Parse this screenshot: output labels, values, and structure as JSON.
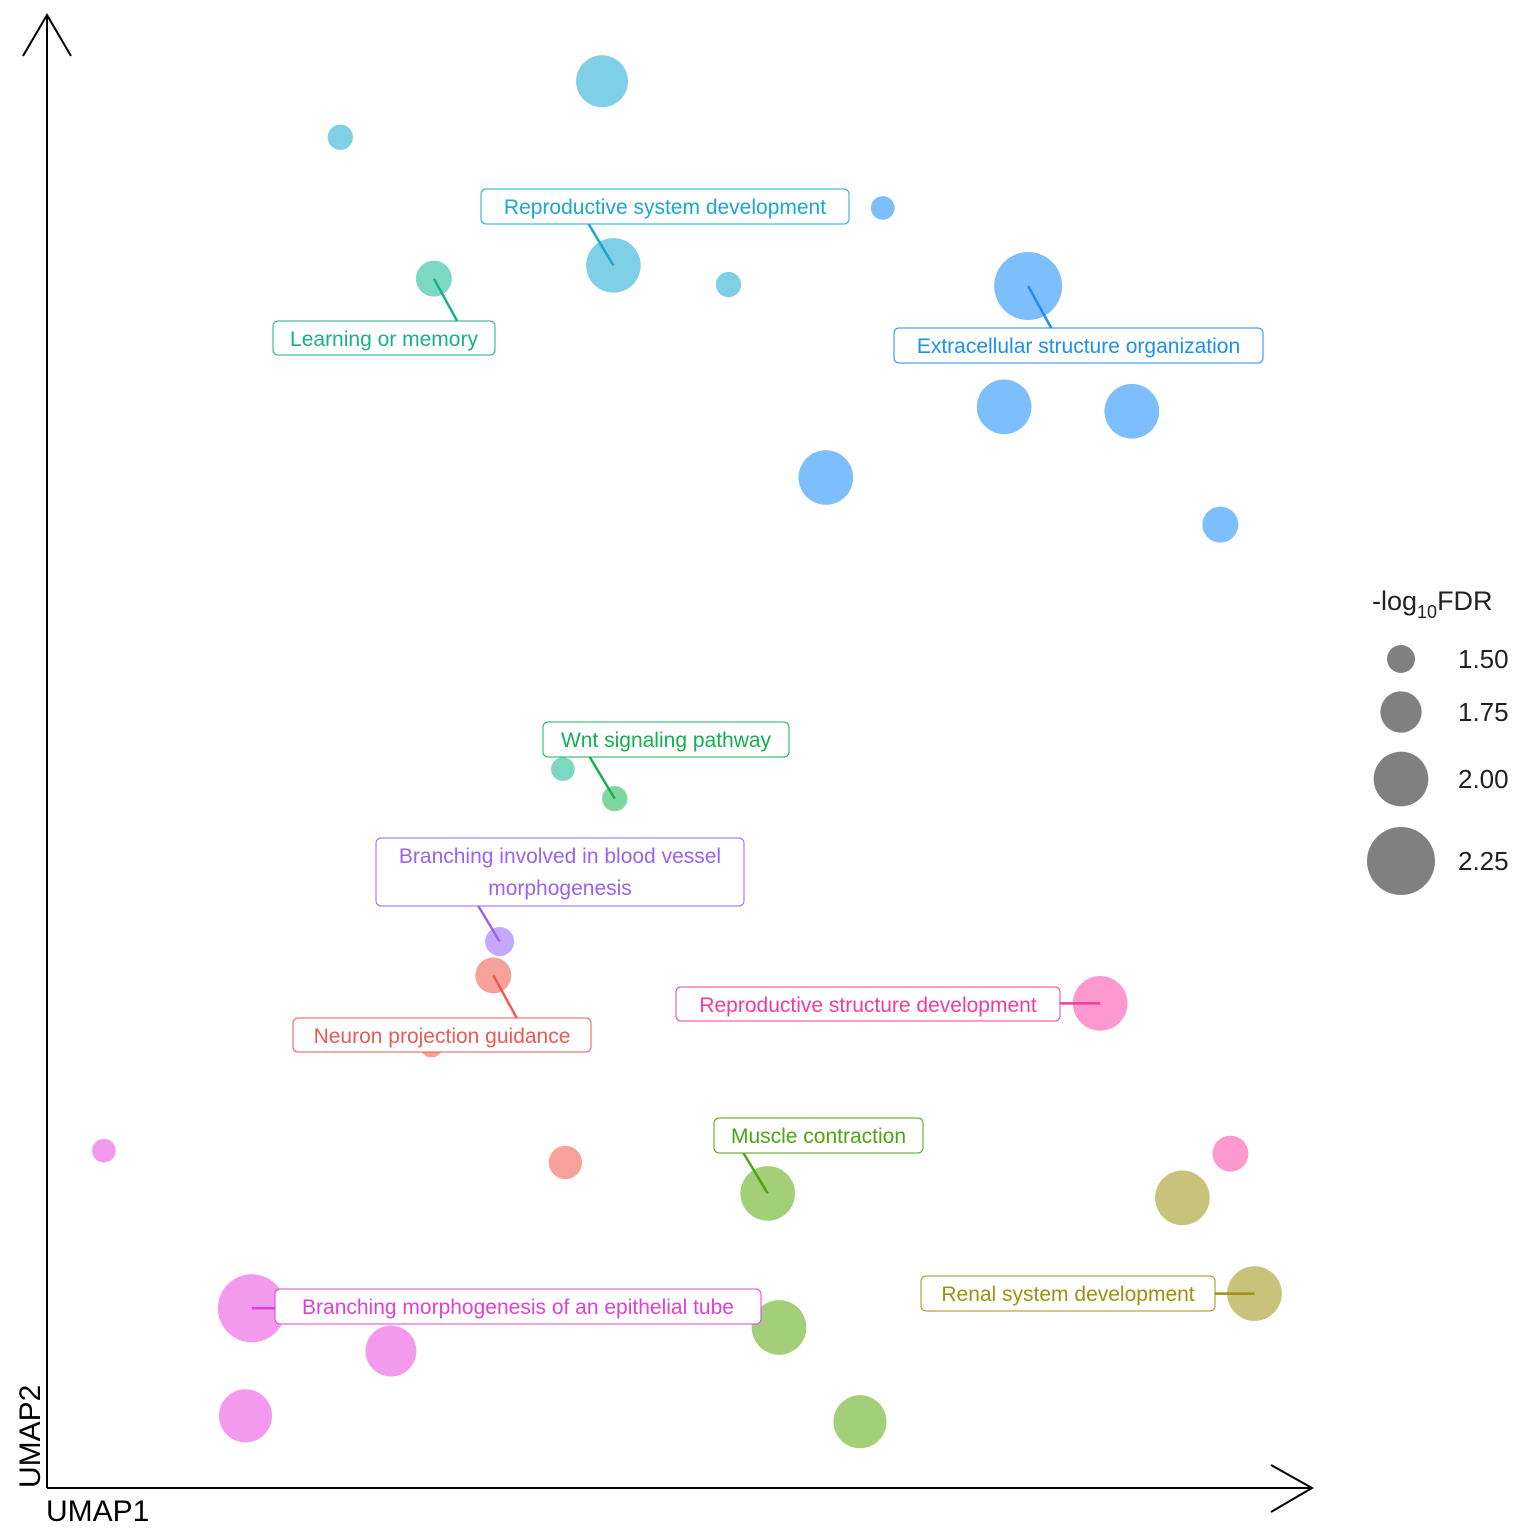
{
  "chart_data": {
    "type": "scatter",
    "title": "",
    "xlabel": "UMAP1",
    "ylabel": "UMAP2",
    "axis_ticks": false,
    "grid": false,
    "xlim": [
      0,
      10
    ],
    "ylim": [
      0,
      10
    ],
    "size_legend": {
      "title_prefix": "-log",
      "title_sub": "10",
      "title_suffix": "FDR",
      "placement": "right",
      "color": "#808080",
      "values": [
        1.5,
        1.75,
        2.0,
        2.25
      ],
      "labels": [
        "1.50",
        "1.75",
        "2.00",
        "2.25"
      ]
    },
    "clusters": [
      {
        "name": "Reproductive system development",
        "color": "#7fd0e6",
        "label_color": "#1aa8cc",
        "points": [
          {
            "x": 4.39,
            "y": 9.55,
            "size": 1.95
          },
          {
            "x": 2.32,
            "y": 9.17,
            "size": 1.45
          },
          {
            "x": 4.48,
            "y": 8.3,
            "size": 2.0
          },
          {
            "x": 5.39,
            "y": 8.17,
            "size": 1.45
          }
        ],
        "label_point": 2
      },
      {
        "name": "Extracellular structure organization",
        "color": "#7dbefc",
        "label_color": "#1e8ef0",
        "points": [
          {
            "x": 6.61,
            "y": 8.69,
            "size": 1.42
          },
          {
            "x": 7.76,
            "y": 8.16,
            "size": 2.25
          },
          {
            "x": 7.57,
            "y": 7.34,
            "size": 2.0
          },
          {
            "x": 8.58,
            "y": 7.31,
            "size": 2.0
          },
          {
            "x": 6.16,
            "y": 6.86,
            "size": 2.0
          },
          {
            "x": 9.28,
            "y": 6.54,
            "size": 1.65
          }
        ],
        "label_point": 1
      },
      {
        "name": "Learning or memory",
        "color": "#7dd8c2",
        "label_color": "#1aaf8c",
        "points": [
          {
            "x": 3.06,
            "y": 8.21,
            "size": 1.65
          },
          {
            "x": 4.08,
            "y": 4.88,
            "size": 1.42
          }
        ],
        "label_point": 0
      },
      {
        "name": "Wnt signaling pathway",
        "color": "#80d6a0",
        "label_color": "#12b050",
        "points": [
          {
            "x": 4.49,
            "y": 4.68,
            "size": 1.45
          }
        ],
        "label_point": 0
      },
      {
        "name": "Branching involved in blood vessel morphogenesis",
        "color": "#c6a8fb",
        "label_color": "#9a62f0",
        "points": [
          {
            "x": 3.58,
            "y": 3.71,
            "size": 1.52
          }
        ],
        "label_point": 0
      },
      {
        "name": "Neuron projection guidance",
        "color": "#f7a19b",
        "label_color": "#ec5a56",
        "points": [
          {
            "x": 3.53,
            "y": 3.48,
            "size": 1.65
          },
          {
            "x": 4.1,
            "y": 2.21,
            "size": 1.6
          },
          {
            "x": 3.04,
            "y": 3.0,
            "size": 1.4
          }
        ],
        "label_point": 0
      },
      {
        "name": "Reproductive structure development",
        "color": "#fd99cf",
        "label_color": "#f03c9a",
        "points": [
          {
            "x": 8.33,
            "y": 3.29,
            "size": 2.0
          },
          {
            "x": 9.36,
            "y": 2.27,
            "size": 1.65
          }
        ],
        "label_point": 0
      },
      {
        "name": "Muscle contraction",
        "color": "#a2cf78",
        "label_color": "#4ca612",
        "points": [
          {
            "x": 5.7,
            "y": 2.0,
            "size": 2.0
          },
          {
            "x": 5.79,
            "y": 1.09,
            "size": 2.0
          },
          {
            "x": 6.43,
            "y": 0.45,
            "size": 1.97
          }
        ],
        "label_point": 0
      },
      {
        "name": "Renal system development",
        "color": "#c9c27a",
        "label_color": "#a09010",
        "points": [
          {
            "x": 8.98,
            "y": 1.97,
            "size": 2.0
          },
          {
            "x": 9.55,
            "y": 1.32,
            "size": 2.0
          }
        ],
        "label_point": 1
      },
      {
        "name": "Branching morphogenesis of an epithelial tube",
        "color": "#f39aee",
        "label_color": "#e040da",
        "points": [
          {
            "x": 1.62,
            "y": 1.22,
            "size": 2.25
          },
          {
            "x": 2.72,
            "y": 0.93,
            "size": 1.93
          },
          {
            "x": 1.57,
            "y": 0.49,
            "size": 1.97
          },
          {
            "x": 0.45,
            "y": 2.29,
            "size": 1.42
          }
        ],
        "label_point": 0
      }
    ]
  }
}
